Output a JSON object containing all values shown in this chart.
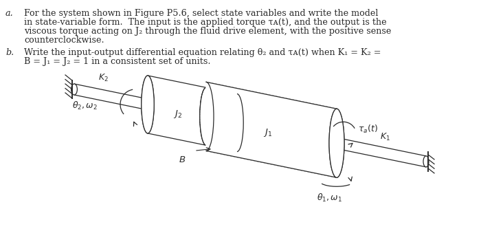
{
  "bg_color": "#ffffff",
  "text_color": "#2a2a2a",
  "label_a": "a.",
  "label_b": "b.",
  "line_a1": "For the system shown in Figure P5.6, select state variables and write the model",
  "line_a2": "in state-variable form.  The input is the applied torque τᴀ(t), and the output is the",
  "line_a3": "viscous torque acting on J₂ through the fluid drive element, with the positive sense",
  "line_a4": "counterclockwise.",
  "line_b1": "Write the input-output differential equation relating θ₂ and τᴀ(t) when K₁ = K₂ =",
  "line_b2": "B = J₁ = J₂ = 1 in a consistent set of units.",
  "figsize": [
    7.0,
    3.36
  ],
  "dpi": 100
}
